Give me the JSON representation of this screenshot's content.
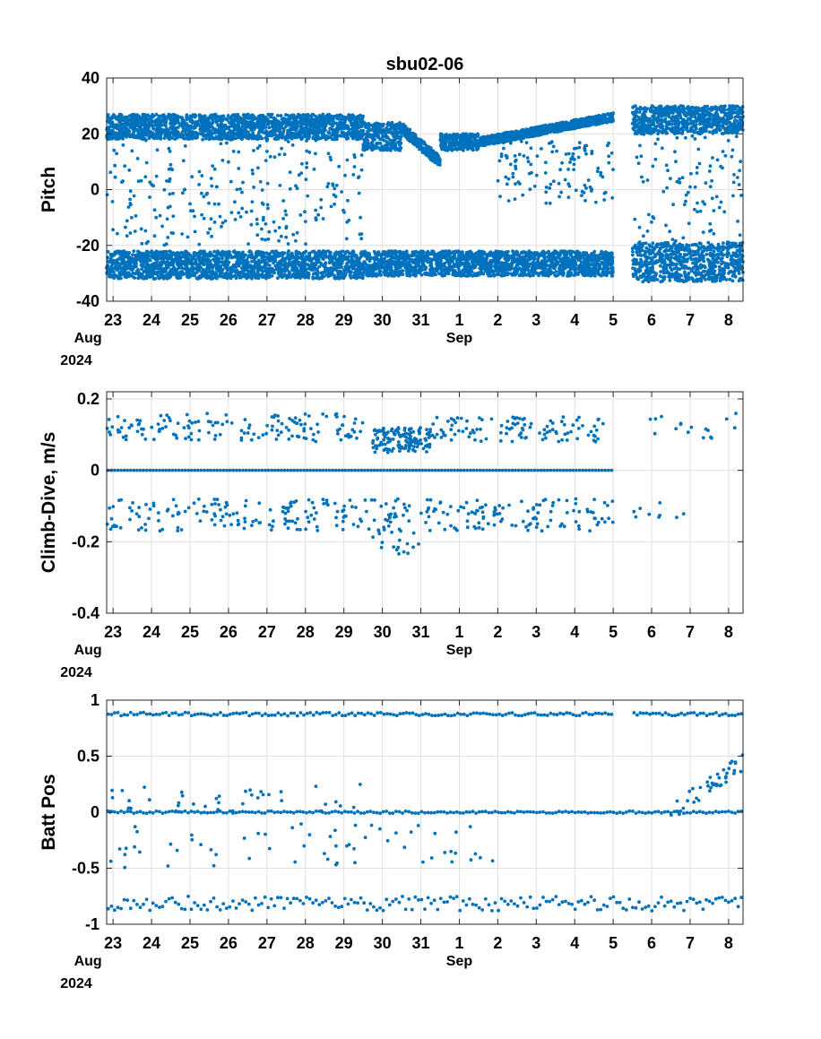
{
  "chart_data": {
    "title": "sbu02-06",
    "type": "scatter",
    "color": "#0072BD",
    "x_axis": {
      "tick_labels": [
        "23",
        "24",
        "25",
        "26",
        "27",
        "28",
        "29",
        "30",
        "31",
        "1",
        "2",
        "3",
        "4",
        "5",
        "6",
        "7",
        "8"
      ],
      "month_labels": [
        {
          "tick": "23",
          "text": "Aug"
        },
        {
          "tick": "1",
          "text": "Sep"
        }
      ],
      "year_label": "2024",
      "range": [
        "2024-08-22T20:00",
        "2024-09-08T09:00"
      ]
    },
    "panels": [
      {
        "ylabel": "Pitch",
        "ylim": [
          -40,
          40
        ],
        "yticks": [
          "-40",
          "-20",
          "0",
          "20",
          "40"
        ],
        "grid": true,
        "clusters": [
          {
            "segment": "2024-08-22T20:00/2024-08-29T12:00",
            "band": [
              18,
              27
            ],
            "shape": "dense band"
          },
          {
            "segment": "2024-08-29T12:00/2024-08-30T12:00",
            "band": [
              14,
              24
            ],
            "shape": "dense band"
          },
          {
            "segment": "2024-08-30T12:00/2024-08-31T12:00",
            "band": [
              10,
              22
            ],
            "shape": "decreasing dense band"
          },
          {
            "segment": "2024-08-31T12:00/2024-09-01T12:00",
            "band": [
              14,
              20
            ],
            "shape": "dense band"
          },
          {
            "segment": "2024-09-01T12:00/2024-09-05T00:00",
            "band": [
              17,
              26
            ],
            "shape": "increasing dense band"
          },
          {
            "segment": "2024-09-05T12:00/2024-09-08T09:00",
            "band": [
              20,
              30
            ],
            "shape": "dense band"
          },
          {
            "segment": "2024-08-22T20:00/2024-08-29T12:00",
            "band": [
              -32,
              -22
            ],
            "shape": "dense band"
          },
          {
            "segment": "2024-08-29T12:00/2024-09-05T00:00",
            "band": [
              -31,
              -22
            ],
            "shape": "dense band"
          },
          {
            "segment": "2024-09-05T12:00/2024-09-08T09:00",
            "band": [
              -33,
              -19
            ],
            "shape": "dense band"
          },
          {
            "segment": "2024-08-22T20:00/2024-08-29T12:00",
            "band": [
              -20,
              20
            ],
            "shape": "sparse scatter"
          },
          {
            "segment": "2024-09-02T00:00/2024-09-05T00:00",
            "band": [
              -5,
              18
            ],
            "shape": "sparse scatter"
          },
          {
            "segment": "2024-09-05T12:00/2024-09-08T09:00",
            "band": [
              -20,
              22
            ],
            "shape": "sparse scatter"
          }
        ],
        "gaps": [
          "2024-09-05T00:00/2024-09-05T12:00"
        ]
      },
      {
        "ylabel": "Climb-Dive, m/s",
        "ylim": [
          -0.4,
          0.22
        ],
        "yticks": [
          "-0.4",
          "-0.2",
          "0",
          "0.2"
        ],
        "grid": true,
        "clusters": [
          {
            "segment": "2024-08-22T20:00/2024-08-29T12:00",
            "band": [
              0.08,
              0.16
            ],
            "shape": "scatter"
          },
          {
            "segment": "2024-08-29T18:00/2024-08-31T06:00",
            "band": [
              0.05,
              0.12
            ],
            "shape": "dense scatter"
          },
          {
            "segment": "2024-08-31T06:00/2024-09-05T00:00",
            "band": [
              0.08,
              0.15
            ],
            "shape": "scatter"
          },
          {
            "segment": "2024-09-05T12:00/2024-09-08T09:00",
            "band": [
              0.08,
              0.16
            ],
            "shape": "sparse scatter"
          },
          {
            "segment": "2024-08-22T20:00/2024-09-05T00:00",
            "band": [
              0.0,
              0.0
            ],
            "shape": "row"
          },
          {
            "segment": "2024-08-22T20:00/2024-09-05T00:00",
            "band": [
              -0.17,
              -0.08
            ],
            "shape": "scatter"
          },
          {
            "segment": "2024-08-29T18:00/2024-08-31T00:00",
            "band": [
              -0.24,
              -0.12
            ],
            "shape": "scatter"
          },
          {
            "segment": "2024-09-05T12:00/2024-09-07T00:00",
            "band": [
              -0.14,
              -0.09
            ],
            "shape": "sparse scatter"
          }
        ],
        "gaps": [
          "2024-09-05T00:00/2024-09-05T12:00"
        ]
      },
      {
        "ylabel": "Batt Pos",
        "ylim": [
          -1,
          1
        ],
        "yticks": [
          "-1",
          "-0.5",
          "0",
          "0.5",
          "1"
        ],
        "grid": true,
        "clusters": [
          {
            "segment": "2024-08-22T20:00/2024-09-05T00:00",
            "band": [
              0.86,
              0.89
            ],
            "shape": "row"
          },
          {
            "segment": "2024-09-05T12:00/2024-09-08T09:00",
            "band": [
              0.86,
              0.89
            ],
            "shape": "row"
          },
          {
            "segment": "2024-08-22T20:00/2024-09-08T09:00",
            "band": [
              -0.01,
              0.01
            ],
            "shape": "row"
          },
          {
            "segment": "2024-08-22T20:00/2024-08-29T12:00",
            "band": [
              0.0,
              0.28
            ],
            "shape": "sparse scatter"
          },
          {
            "segment": "2024-08-22T20:00/2024-08-29T12:00",
            "band": [
              -0.5,
              -0.1
            ],
            "shape": "sparse scatter"
          },
          {
            "segment": "2024-08-29T12:00/2024-09-02T00:00",
            "band": [
              -0.45,
              -0.1
            ],
            "shape": "sparse scatter"
          },
          {
            "segment": "2024-09-06T12:00/2024-09-08T09:00",
            "band": [
              0.0,
              0.45
            ],
            "shape": "increasing scatter"
          },
          {
            "segment": "2024-08-22T20:00/2024-09-08T09:00",
            "band": [
              -0.88,
              -0.75
            ],
            "shape": "row"
          }
        ],
        "gaps": [
          "2024-09-05T00:00/2024-09-05T12:00"
        ]
      }
    ]
  }
}
